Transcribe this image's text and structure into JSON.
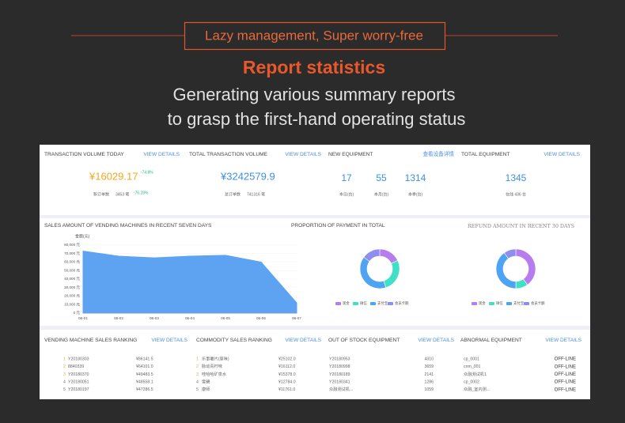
{
  "header": {
    "tagline": "Lazy management, Super worry-free",
    "title": "Report statistics",
    "subtitle": [
      "Generating various summary reports",
      "to grasp the first-hand operating status"
    ]
  },
  "summary": [
    {
      "title": "TRANSACTION VOLUME TODAY",
      "link": "VIEW DETAILS",
      "value": "¥16029.17",
      "change": "↑74.8%",
      "note_label": "新订单数",
      "note_value": "3453 笔",
      "note_change": "↑76.28%"
    },
    {
      "title": "TOTAL TRANSACTION VOLUME",
      "link": "VIEW DETAILS",
      "value": "¥3242579.9",
      "note_label": "总订单数",
      "note_value": "741316 笔"
    },
    {
      "title": "NEW EQUIPMENT",
      "link": "查看设备详情",
      "stats": [
        {
          "value": 17,
          "label": "本日(台)"
        },
        {
          "value": 55,
          "label": "本月(台)"
        },
        {
          "value": 1314,
          "label": "本季(台)"
        }
      ]
    },
    {
      "title": "TOTAL EQUIPMENT",
      "link": "VIEW DETAILS",
      "stats": [
        {
          "value": 1345,
          "label": "在线 436 台"
        }
      ]
    }
  ],
  "chart_data": [
    {
      "type": "area",
      "title": "SALES AMOUNT OF VENDING MACHINES IN RECENT SEVEN DAYS",
      "y_label": "金额(元)",
      "categories": [
        "06-01",
        "06-02",
        "06-03",
        "06-04",
        "06-05",
        "06-06",
        "06-07"
      ],
      "values": [
        73000,
        67000,
        65000,
        67000,
        68000,
        60000,
        12000
      ],
      "color": "#5ea3f2",
      "ylim": [
        0,
        80000
      ],
      "yticks": [
        {
          "value": 0,
          "label": "0 元"
        },
        {
          "value": 10000,
          "label": "10,000 元"
        },
        {
          "value": 20000,
          "label": "20,000 元"
        },
        {
          "value": 30000,
          "label": "30,000 元"
        },
        {
          "value": 40000,
          "label": "40,000 元"
        },
        {
          "value": 50000,
          "label": "50,000 元"
        },
        {
          "value": 60000,
          "label": "60,000 元"
        },
        {
          "value": 70000,
          "label": "70,000 元"
        },
        {
          "value": 80000,
          "label": "80,000 元"
        }
      ]
    },
    {
      "type": "donut",
      "title": "PROPORTION OF PAYMENT IN TOTAL",
      "categories": [
        "现金",
        "微信",
        "支付宝",
        "会员卡额"
      ],
      "values": [
        18,
        27,
        40,
        15
      ],
      "colors": [
        "#b77cf0",
        "#3fe0c6",
        "#4ea4f2",
        "#8e8ef0"
      ]
    },
    {
      "type": "donut",
      "title": "REFUND AMOUNT IN RECENT 30 DAYS",
      "categories": [
        "现金",
        "微信",
        "支付宝",
        "会员卡额"
      ],
      "values": [
        40,
        10,
        40,
        10
      ],
      "colors": [
        "#b77cf0",
        "#3fe0c6",
        "#4ea4f2",
        "#8e8ef0"
      ]
    }
  ],
  "tables": [
    {
      "title": "VENDING MACHINE SALES RANKING",
      "link": "VIEW DETAILS",
      "rows": [
        [
          "1",
          "Y20180303",
          "¥86141.5"
        ],
        [
          "2",
          "8840339",
          "¥64101.0"
        ],
        [
          "3",
          "Y20180370",
          "¥49483.5"
        ],
        [
          "4",
          "Y20180051",
          "¥48558.1"
        ],
        [
          "5",
          "Y20180197",
          "¥47286.5"
        ]
      ]
    },
    {
      "title": "COMMODITY SALES RANKING",
      "link": "VIEW DETAILS",
      "rows": [
        [
          "1",
          "乐事薯片(原味)",
          "¥25102.0"
        ],
        [
          "2",
          "脉动青柠味",
          "¥16112.0"
        ],
        [
          "3",
          "哇哈哈矿泉水",
          "¥15378.0"
        ],
        [
          "4",
          "雪碧",
          "¥12784.0"
        ],
        [
          "5",
          "康师",
          "¥11761.0"
        ]
      ]
    },
    {
      "title": "OUT OF STOCK EQUIPMENT",
      "link": "VIEW DETAILS",
      "rows": [
        [
          "Y20180953",
          "4310"
        ],
        [
          "Y20180998",
          "3659"
        ],
        [
          "Y20180189",
          "2141"
        ],
        [
          "Y20180341",
          "1286"
        ],
        [
          "众融测试机...",
          "1059"
        ]
      ]
    },
    {
      "title": "ABNORMAL EQUIPMENT",
      "link": "VIEW DETAILS",
      "rows": [
        [
          "cp_0001",
          "OFF-LINE"
        ],
        [
          "cnm_001",
          "OFF-LINE"
        ],
        [
          "众融测试机1",
          "OFF-LINE"
        ],
        [
          "cp_0002",
          "OFF-LINE"
        ],
        [
          "众融_室内测...",
          "OFF-LINE"
        ]
      ]
    }
  ]
}
